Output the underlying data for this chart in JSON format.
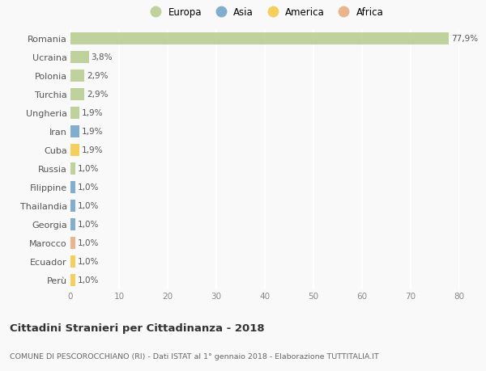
{
  "countries": [
    "Romania",
    "Ucraina",
    "Polonia",
    "Turchia",
    "Ungheria",
    "Iran",
    "Cuba",
    "Russia",
    "Filippine",
    "Thailandia",
    "Georgia",
    "Marocco",
    "Ecuador",
    "Perù"
  ],
  "values": [
    77.9,
    3.8,
    2.9,
    2.9,
    1.9,
    1.9,
    1.9,
    1.0,
    1.0,
    1.0,
    1.0,
    1.0,
    1.0,
    1.0
  ],
  "labels": [
    "77,9%",
    "3,8%",
    "2,9%",
    "2,9%",
    "1,9%",
    "1,9%",
    "1,9%",
    "1,0%",
    "1,0%",
    "1,0%",
    "1,0%",
    "1,0%",
    "1,0%",
    "1,0%"
  ],
  "colors": [
    "#b5cc8e",
    "#b5cc8e",
    "#b5cc8e",
    "#b5cc8e",
    "#b5cc8e",
    "#6ca0c8",
    "#f5c842",
    "#b5cc8e",
    "#6ca0c8",
    "#6ca0c8",
    "#6ca0c8",
    "#e8a87c",
    "#f5c842",
    "#f5c842"
  ],
  "legend_labels": [
    "Europa",
    "Asia",
    "America",
    "Africa"
  ],
  "legend_colors": [
    "#b5cc8e",
    "#6ca0c8",
    "#f5c842",
    "#e8a87c"
  ],
  "title": "Cittadini Stranieri per Cittadinanza - 2018",
  "subtitle": "COMUNE DI PESCOROCCHIANO (RI) - Dati ISTAT al 1° gennaio 2018 - Elaborazione TUTTITALIA.IT",
  "xlim": [
    0,
    80
  ],
  "xticks": [
    0,
    10,
    20,
    30,
    40,
    50,
    60,
    70,
    80
  ],
  "background_color": "#f9f9f9",
  "grid_color": "#ffffff"
}
